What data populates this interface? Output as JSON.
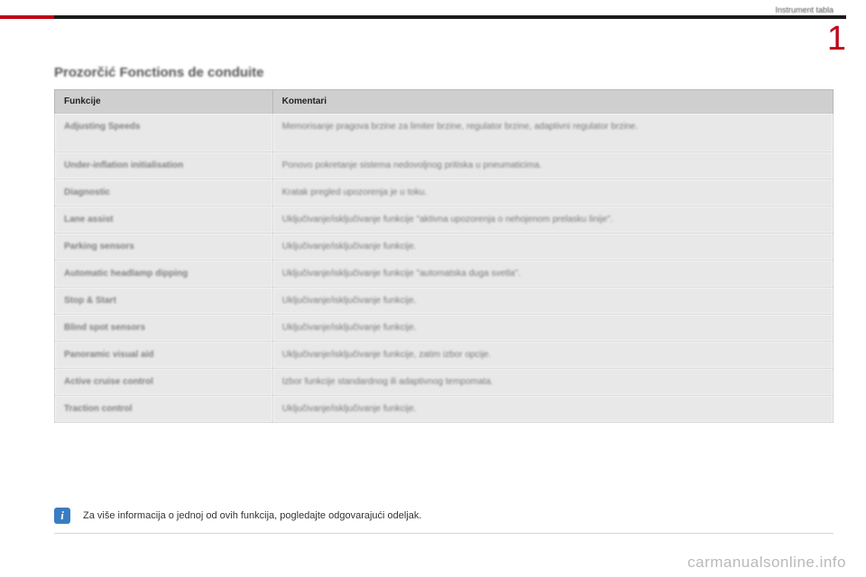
{
  "breadcrumb": "Instrument tabla",
  "chapter_number": "1",
  "title": "Prozorčić Fonctions de conduite",
  "table": {
    "headers": {
      "fn": "Funkcije",
      "cm": "Komentari"
    },
    "rows": [
      {
        "fn": "Adjusting Speeds",
        "cm": "Memorisanje pragova brzine za limiter brzine, regulator brzine, adaptivni regulator brzine.",
        "tall": true
      },
      {
        "fn": "Under-inflation initialisation",
        "cm": "Ponovo pokretanje sistema nedovoljnog pritiska u pneumaticima."
      },
      {
        "fn": "Diagnostic",
        "cm": "Kratak pregled upozorenja je u toku."
      },
      {
        "fn": "Lane assist",
        "cm": "Uključivanje/isključivanje funkcije \"aktivna upozorenja o nehojenom prelasku linije\"."
      },
      {
        "fn": "Parking sensors",
        "cm": "Uključivanje/isključivanje funkcije."
      },
      {
        "fn": "Automatic headlamp dipping",
        "cm": "Uključivanje/isključivanje funkcije \"automatska duga svetla\"."
      },
      {
        "fn": "Stop & Start",
        "cm": "Uključivanje/isključivanje funkcije."
      },
      {
        "fn": "Blind spot sensors",
        "cm": "Uključivanje/isključivanje funkcije."
      },
      {
        "fn": "Panoramic visual aid",
        "cm": "Uključivanje/isključivanje funkcije, zatim izbor opcije."
      },
      {
        "fn": "Active cruise control",
        "cm": "Izbor funkcije standardnog ili adaptivnog tempomata."
      },
      {
        "fn": "Traction control",
        "cm": "Uključivanje/isključivanje funkcije."
      }
    ]
  },
  "note": "Za više informacija o jednoj od ovih funkcija, pogledajte odgovarajući odeljak.",
  "watermark": "carmanualsonline.info",
  "colors": {
    "accent": "#c00018",
    "info_icon_bg": "#3a7cc2",
    "header_bg": "#cfcfcf",
    "cell_bg": "#e8e8e8"
  }
}
